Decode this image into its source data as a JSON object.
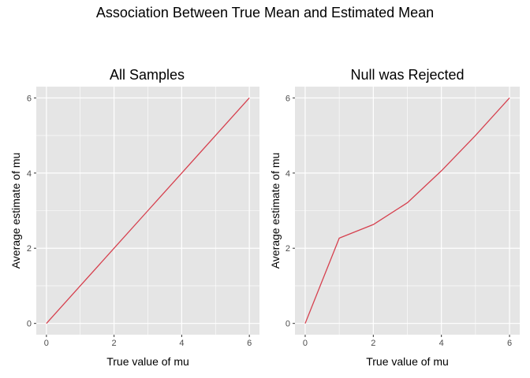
{
  "figure": {
    "title": "Association Between True Mean and Estimated Mean",
    "line_color": "#d6404e",
    "panel_bg": "#e5e5e5",
    "grid_color": "#ffffff"
  },
  "chart_data": [
    {
      "type": "line",
      "title": "All Samples",
      "xlabel": "True value of mu",
      "ylabel": "Average estimate of mu",
      "xlim": [
        -0.3,
        6.3
      ],
      "ylim": [
        -0.3,
        6.3
      ],
      "xticks": [
        0,
        2,
        4,
        6
      ],
      "yticks": [
        0,
        2,
        4,
        6
      ],
      "grid": true,
      "series": [
        {
          "x": [
            0,
            1,
            2,
            3,
            4,
            5,
            6
          ],
          "y": [
            0.0,
            1.0,
            2.0,
            3.0,
            4.0,
            5.0,
            6.0
          ]
        }
      ]
    },
    {
      "type": "line",
      "title": "Null was Rejected",
      "xlabel": "True value of mu",
      "ylabel": "Average estimate of mu",
      "xlim": [
        -0.3,
        6.3
      ],
      "ylim": [
        -0.3,
        6.3
      ],
      "xticks": [
        0,
        2,
        4,
        6
      ],
      "yticks": [
        0,
        2,
        4,
        6
      ],
      "grid": true,
      "series": [
        {
          "x": [
            0,
            1,
            2,
            3,
            4,
            5,
            6
          ],
          "y": [
            0.0,
            2.27,
            2.63,
            3.21,
            4.06,
            5.0,
            6.0
          ]
        }
      ]
    }
  ]
}
